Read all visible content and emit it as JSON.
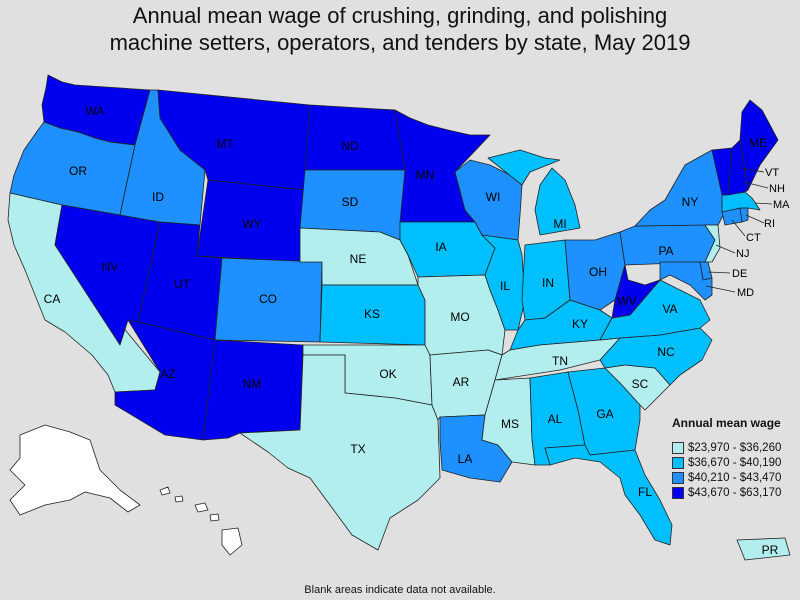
{
  "title_line1": "Annual mean wage of crushing, grinding, and polishing",
  "title_line2": "machine setters, operators, and tenders by state, May 2019",
  "legend": {
    "title": "Annual mean wage",
    "ranges": [
      {
        "label": "$23,970 - $36,260",
        "color": "#b2eeee"
      },
      {
        "label": "$36,670 - $40,190",
        "color": "#00bfff"
      },
      {
        "label": "$40,210 - $43,470",
        "color": "#1e90ff"
      },
      {
        "label": "$43,670 - $63,170",
        "color": "#0000ee"
      }
    ]
  },
  "no_data_color": "#ffffff",
  "footnote": "Blank areas indicate data not available.",
  "states": {
    "WA": 3,
    "OR": 2,
    "CA": 0,
    "NV": 3,
    "ID": 2,
    "MT": 3,
    "WY": 3,
    "UT": 3,
    "AZ": 3,
    "CO": 2,
    "NM": 3,
    "ND": 3,
    "SD": 2,
    "NE": 0,
    "KS": 1,
    "OK": 0,
    "TX": 0,
    "MN": 3,
    "IA": 1,
    "MO": 0,
    "AR": 0,
    "LA": 2,
    "WI": 2,
    "IL": 1,
    "MS": 0,
    "MI": 1,
    "IN": 1,
    "KY": 1,
    "TN": 0,
    "AL": 1,
    "OH": 2,
    "GA": 1,
    "FL": 1,
    "SC": 0,
    "NC": 1,
    "VA": 1,
    "WV": 3,
    "PA": 2,
    "NY": 2,
    "ME": 3,
    "VT": 3,
    "NH": 3,
    "MA": 1,
    "RI": 2,
    "CT": 2,
    "NJ": 0,
    "DE": 2,
    "MD": 2,
    "AK": null,
    "HI": null,
    "PR": 0
  }
}
